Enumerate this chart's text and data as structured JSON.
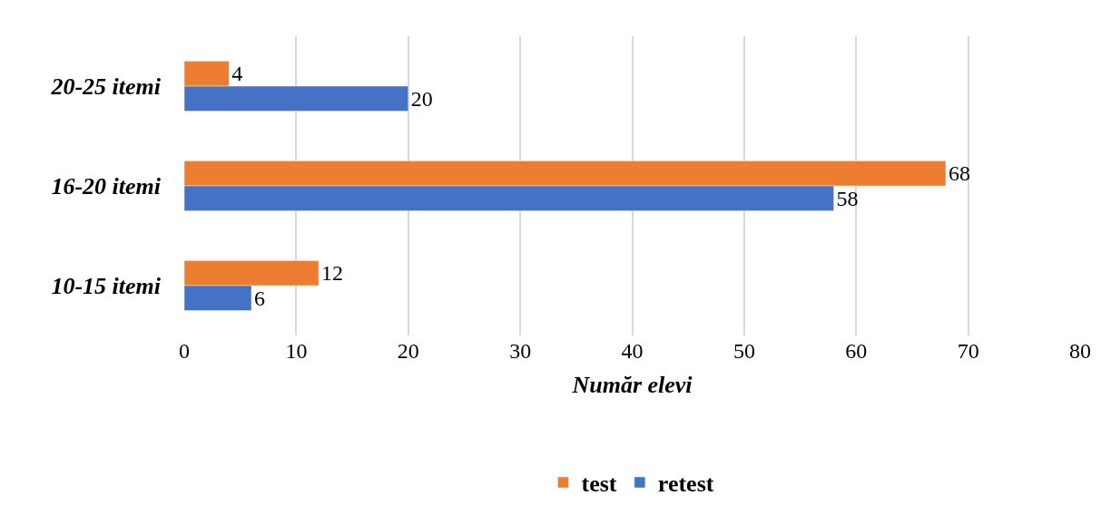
{
  "chart_data": {
    "type": "bar",
    "orientation": "horizontal",
    "categories": [
      "20-25 itemi",
      "16-20 itemi",
      "10-15 itemi"
    ],
    "xlabel": "Număr elevi",
    "series": [
      {
        "name": "test",
        "color": "#ed7d31",
        "values": [
          4,
          68,
          12
        ]
      },
      {
        "name": "retest",
        "color": "#4472c4",
        "values": [
          20,
          58,
          6
        ]
      }
    ],
    "xlim": [
      0,
      80
    ],
    "xticks": [
      0,
      10,
      20,
      30,
      40,
      50,
      60,
      70,
      80
    ],
    "grid": "x",
    "legend": "bottom",
    "data_labels": true
  }
}
